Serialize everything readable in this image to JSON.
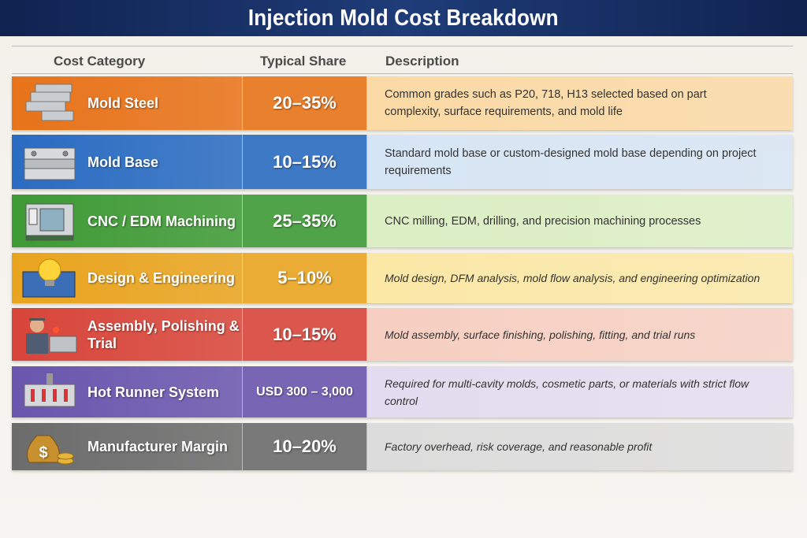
{
  "title": "Injection Mold Cost Breakdown",
  "headers": {
    "category": "Cost Category",
    "share": "Typical Share",
    "description": "Description"
  },
  "rows": [
    {
      "category": "Mold Steel",
      "share": "20–35%",
      "description": "Common grades such as P20, 718, H13 selected based on part complexity, surface requirements, and mold life",
      "icon": "steel-bars-icon",
      "color": "#e8731a",
      "tint": "#fbd9a4"
    },
    {
      "category": "Mold Base",
      "share": "10–15%",
      "description": "Standard mold base or custom-designed mold base depending on project requirements",
      "icon": "mold-base-icon",
      "color": "#2a6cc2",
      "tint": "#d6e5f5"
    },
    {
      "category": "CNC / EDM Machining",
      "share": "25–35%",
      "description": "CNC milling, EDM, drilling, and precision machining processes",
      "icon": "cnc-machine-icon",
      "color": "#3e9a35",
      "tint": "#dcefc4"
    },
    {
      "category": "Design & Engineering",
      "share": "5–10%",
      "description": "Mold design, DFM analysis, mold flow analysis, and engineering optimization",
      "icon": "lightbulb-blueprint-icon",
      "color": "#e9a41f",
      "tint": "#fbe8a6"
    },
    {
      "category": "Assembly, Polishing & Trial",
      "share": "10–15%",
      "description": "Mold assembly, surface finishing, polishing, fitting, and trial runs",
      "icon": "worker-icon",
      "color": "#d8453a",
      "tint": "#f7cfc2"
    },
    {
      "category": "Hot Runner System",
      "share": "USD 300 – 3,000",
      "description": "Required for multi-cavity molds, cosmetic parts, or materials with strict flow control",
      "icon": "hot-runner-icon",
      "color": "#6a56ae",
      "tint": "#e3dcf0"
    },
    {
      "category": "Manufacturer Margin",
      "share": "10–20%",
      "description": "Factory overhead, risk coverage, and reasonable profit",
      "icon": "money-bag-icon",
      "color": "#6c6c6c",
      "tint": "#dcdcdc"
    }
  ]
}
